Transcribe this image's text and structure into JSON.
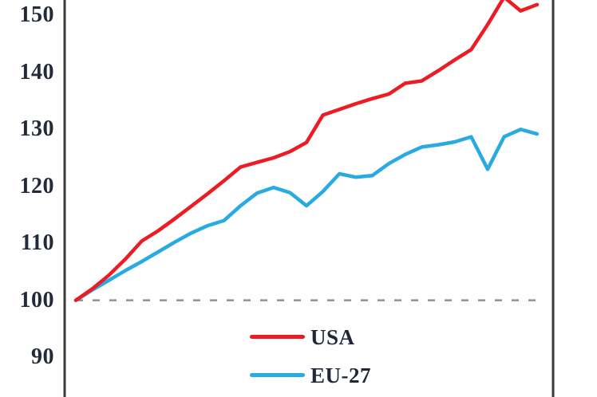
{
  "chart_data": {
    "type": "line",
    "title": "",
    "x_labels_visible": false,
    "x": [
      0,
      1,
      2,
      3,
      4,
      5,
      6,
      7,
      8,
      9,
      10,
      11,
      12,
      13,
      14,
      15,
      16,
      17,
      18,
      19,
      20,
      21,
      22,
      23,
      24,
      25,
      26,
      27,
      28
    ],
    "series": [
      {
        "name": "USA",
        "color": "#EC1C24",
        "values": [
          100,
          102.0,
          104.4,
          107.2,
          110.4,
          112.2,
          114.3,
          116.5,
          118.7,
          121.0,
          123.4,
          124.2,
          125.0,
          126.1,
          127.7,
          132.5,
          133.5,
          134.5,
          135.4,
          136.2,
          138.1,
          138.5,
          140.3,
          142.2,
          144.0,
          148.4,
          153.2,
          150.8,
          151.9
        ]
      },
      {
        "name": "EU-27",
        "color": "#29AAE1",
        "values": [
          100,
          101.8,
          103.5,
          105.2,
          106.8,
          108.5,
          110.2,
          111.8,
          113.1,
          114.0,
          116.6,
          118.8,
          119.8,
          118.9,
          116.6,
          119.1,
          122.2,
          121.6,
          121.9,
          124.0,
          125.6,
          126.9,
          127.3,
          127.8,
          128.7,
          123.0,
          128.7,
          130.0,
          129.2
        ]
      }
    ],
    "y_ticks": [
      150,
      140,
      130,
      120,
      110,
      100,
      90
    ],
    "y_axis_side": "left",
    "y_range_visible": [
      83,
      152.7
    ],
    "reference_line": {
      "value": 100,
      "style": "dashed",
      "color": "#969696"
    },
    "legend": {
      "position": "inside-bottom-center",
      "entries": [
        "USA",
        "EU-27"
      ]
    },
    "grid": false,
    "axis_color": "#3A3A3A",
    "text_color": "#232B3A"
  }
}
